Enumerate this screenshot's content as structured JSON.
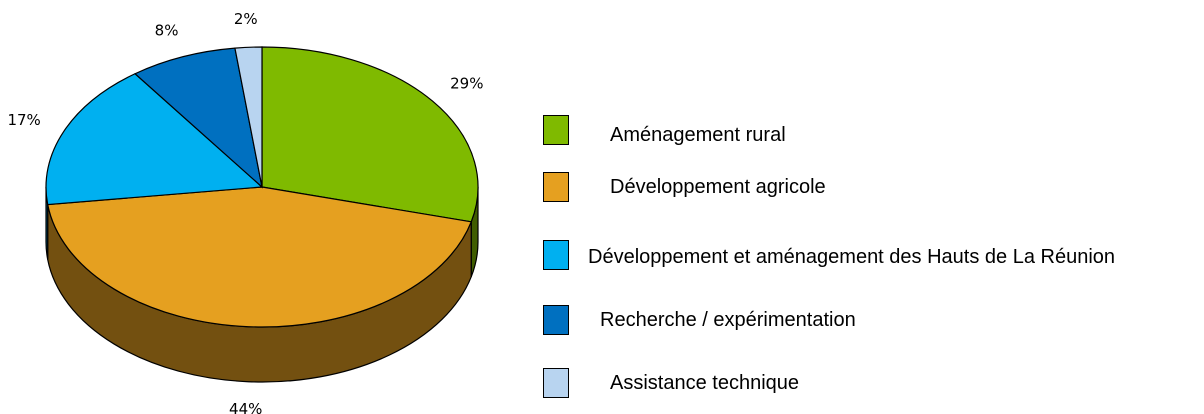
{
  "chart_data": {
    "type": "pie",
    "categories": [
      "Aménagement rural",
      "Développement agricole",
      "Développement et aménagement des Hauts de La Réunion",
      "Recherche / expérimentation",
      "Assistance technique"
    ],
    "values": [
      29,
      44,
      17,
      8,
      2
    ],
    "value_labels": [
      "29%",
      "44%",
      "17%",
      "8%",
      "2%"
    ],
    "colors": [
      "#7fba00",
      "#e5a020",
      "#00b0f0",
      "#0070c0",
      "#b8d4f0"
    ],
    "legend": "right"
  }
}
